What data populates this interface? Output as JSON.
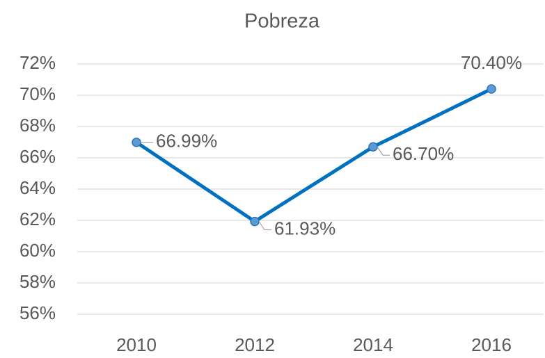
{
  "chart_data": {
    "type": "line",
    "title": "Pobreza",
    "categories": [
      "2010",
      "2012",
      "2014",
      "2016"
    ],
    "values": [
      66.99,
      61.93,
      66.7,
      70.4
    ],
    "value_labels": [
      "66.99%",
      "61.93%",
      "66.70%",
      "70.40%"
    ],
    "color": "#0070c0",
    "marker_color": "#5b9bd5",
    "ylim": [
      56,
      72
    ],
    "yticks": [
      {
        "value": 56,
        "label": "56%"
      },
      {
        "value": 58,
        "label": "58%"
      },
      {
        "value": 60,
        "label": "60%"
      },
      {
        "value": 62,
        "label": "62%"
      },
      {
        "value": 64,
        "label": "64%"
      },
      {
        "value": 66,
        "label": "66%"
      },
      {
        "value": 68,
        "label": "68%"
      },
      {
        "value": 70,
        "label": "70%"
      },
      {
        "value": 72,
        "label": "72%"
      }
    ],
    "grid": true
  }
}
